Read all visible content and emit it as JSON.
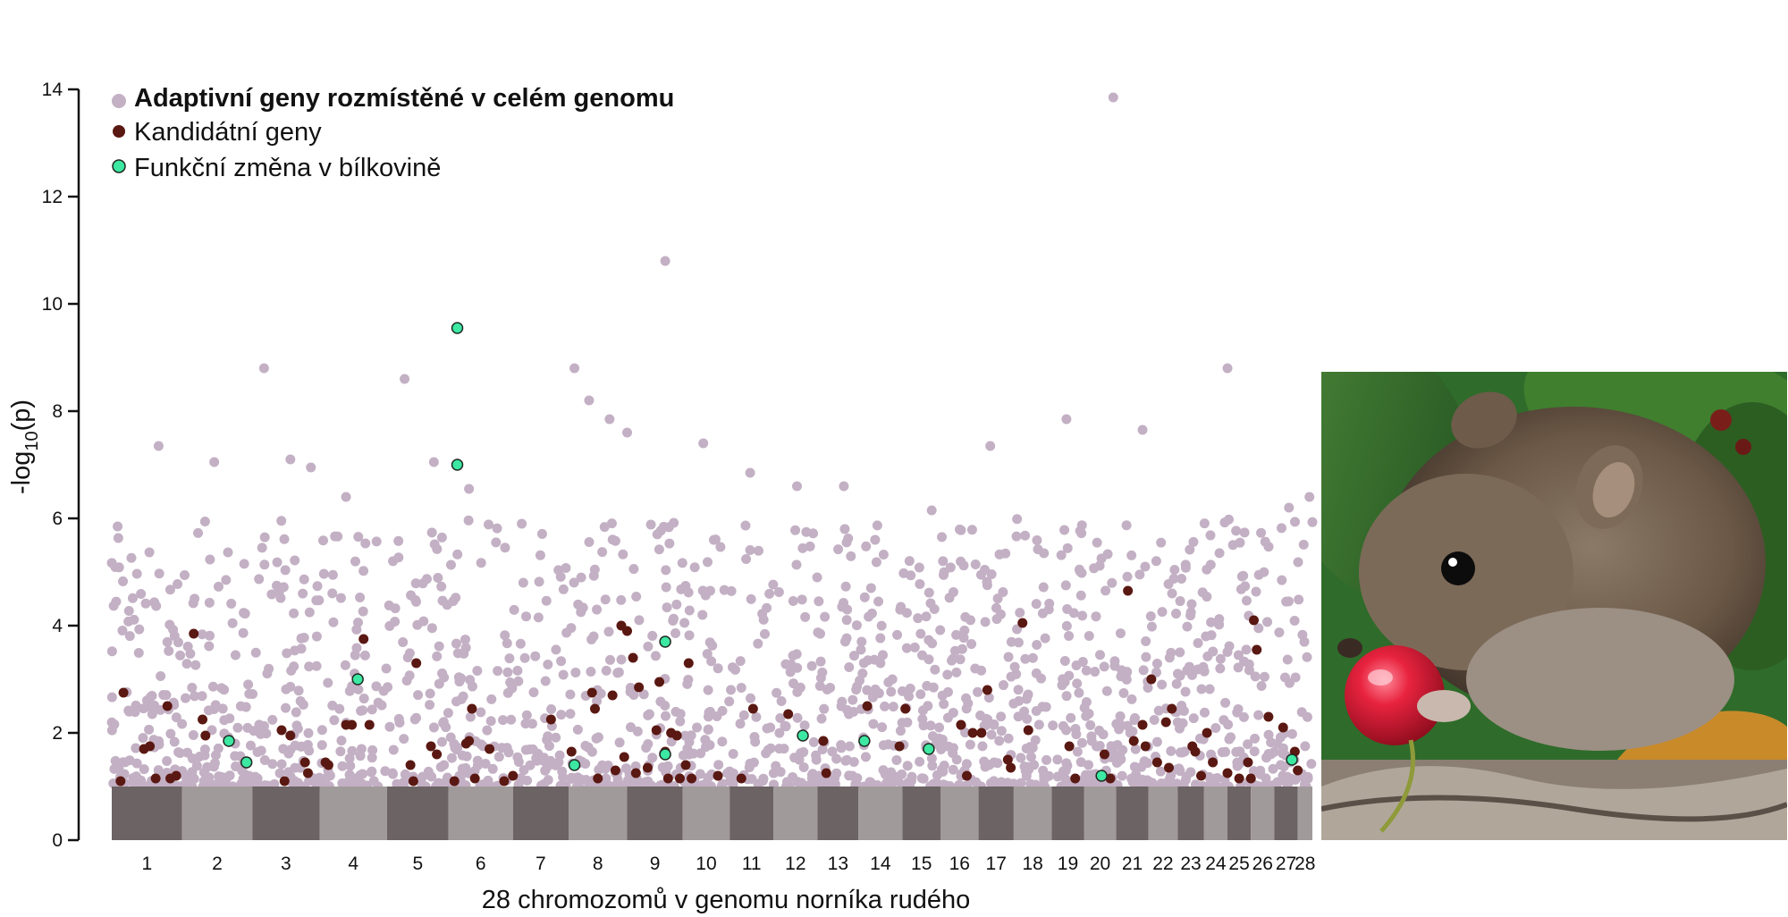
{
  "colors": {
    "background": "#c3b0c4",
    "candidate": "#5a1812",
    "functional": "#3ce8a2",
    "functional_stroke": "#1f2a22",
    "band_dark": "#6c6364",
    "band_light": "#a19a9a",
    "axis": "#111111"
  },
  "chart_data": {
    "type": "scatter",
    "ylabel": "-log10(p)",
    "ylabel_main": "-log",
    "ylabel_sub": "10",
    "ylabel_tail": "(p)",
    "xlabel": "28 chromozomů v genomu norníka rudého",
    "ylim": [
      0,
      14
    ],
    "yticks": [
      0,
      2,
      4,
      6,
      8,
      10,
      12,
      14
    ],
    "chromosomes": [
      {
        "label": "1",
        "span": [
          0.0,
          1.2
        ]
      },
      {
        "label": "2",
        "span": [
          1.2,
          2.4
        ]
      },
      {
        "label": "3",
        "span": [
          2.4,
          3.55
        ]
      },
      {
        "label": "4",
        "span": [
          3.55,
          4.7
        ]
      },
      {
        "label": "5",
        "span": [
          4.7,
          5.75
        ]
      },
      {
        "label": "6",
        "span": [
          5.75,
          6.85
        ]
      },
      {
        "label": "7",
        "span": [
          6.85,
          7.8
        ]
      },
      {
        "label": "8",
        "span": [
          7.8,
          8.8
        ]
      },
      {
        "label": "9",
        "span": [
          8.8,
          9.75
        ]
      },
      {
        "label": "10",
        "span": [
          9.75,
          10.55
        ]
      },
      {
        "label": "11",
        "span": [
          10.55,
          11.3
        ]
      },
      {
        "label": "12",
        "span": [
          11.3,
          12.05
        ]
      },
      {
        "label": "13",
        "span": [
          12.05,
          12.75
        ]
      },
      {
        "label": "14",
        "span": [
          12.75,
          13.5
        ]
      },
      {
        "label": "15",
        "span": [
          13.5,
          14.15
        ]
      },
      {
        "label": "16",
        "span": [
          14.15,
          14.8
        ]
      },
      {
        "label": "17",
        "span": [
          14.8,
          15.4
        ]
      },
      {
        "label": "18",
        "span": [
          15.4,
          16.05
        ]
      },
      {
        "label": "19",
        "span": [
          16.05,
          16.6
        ]
      },
      {
        "label": "20",
        "span": [
          16.6,
          17.15
        ]
      },
      {
        "label": "21",
        "span": [
          17.15,
          17.7
        ]
      },
      {
        "label": "22",
        "span": [
          17.7,
          18.2
        ]
      },
      {
        "label": "23",
        "span": [
          18.2,
          18.65
        ]
      },
      {
        "label": "24",
        "span": [
          18.65,
          19.05
        ]
      },
      {
        "label": "25",
        "span": [
          19.05,
          19.45
        ]
      },
      {
        "label": "26",
        "span": [
          19.45,
          19.85
        ]
      },
      {
        "label": "27",
        "span": [
          19.85,
          20.25
        ]
      },
      {
        "label": "28",
        "span": [
          20.25,
          20.5
        ]
      }
    ],
    "xlim": [
      0,
      20.5
    ],
    "series": [
      {
        "name": "Adaptivní geny rozmístěné v celém genomu",
        "kind": "background",
        "peaks": [
          {
            "x": 0.1,
            "y": 5.85
          },
          {
            "x": 0.8,
            "y": 7.35
          },
          {
            "x": 1.75,
            "y": 7.05
          },
          {
            "x": 2.6,
            "y": 8.8
          },
          {
            "x": 3.05,
            "y": 7.1
          },
          {
            "x": 3.4,
            "y": 6.95
          },
          {
            "x": 4.0,
            "y": 6.4
          },
          {
            "x": 5.0,
            "y": 8.6
          },
          {
            "x": 5.5,
            "y": 7.05
          },
          {
            "x": 6.1,
            "y": 6.55
          },
          {
            "x": 7.0,
            "y": 5.9
          },
          {
            "x": 7.9,
            "y": 8.8
          },
          {
            "x": 8.15,
            "y": 8.2
          },
          {
            "x": 8.5,
            "y": 7.85
          },
          {
            "x": 8.8,
            "y": 7.6
          },
          {
            "x": 9.45,
            "y": 10.8
          },
          {
            "x": 10.1,
            "y": 7.4
          },
          {
            "x": 10.9,
            "y": 6.85
          },
          {
            "x": 11.7,
            "y": 6.6
          },
          {
            "x": 12.5,
            "y": 6.6
          },
          {
            "x": 14.0,
            "y": 6.15
          },
          {
            "x": 15.0,
            "y": 7.35
          },
          {
            "x": 16.3,
            "y": 7.85
          },
          {
            "x": 17.6,
            "y": 7.65
          },
          {
            "x": 17.1,
            "y": 13.85
          },
          {
            "x": 19.05,
            "y": 8.8
          },
          {
            "x": 20.1,
            "y": 6.2
          },
          {
            "x": 20.45,
            "y": 6.4
          }
        ]
      },
      {
        "name": "Kandidátní geny",
        "kind": "candidate",
        "points": [
          {
            "x": 0.15,
            "y": 1.1
          },
          {
            "x": 0.2,
            "y": 2.75
          },
          {
            "x": 0.55,
            "y": 1.7
          },
          {
            "x": 0.65,
            "y": 1.75
          },
          {
            "x": 0.75,
            "y": 1.15
          },
          {
            "x": 0.95,
            "y": 2.5
          },
          {
            "x": 1.0,
            "y": 1.15
          },
          {
            "x": 1.1,
            "y": 1.2
          },
          {
            "x": 1.4,
            "y": 3.85
          },
          {
            "x": 1.55,
            "y": 2.25
          },
          {
            "x": 1.6,
            "y": 1.95
          },
          {
            "x": 2.9,
            "y": 2.05
          },
          {
            "x": 2.95,
            "y": 1.1
          },
          {
            "x": 3.05,
            "y": 1.95
          },
          {
            "x": 3.3,
            "y": 1.45
          },
          {
            "x": 3.35,
            "y": 1.25
          },
          {
            "x": 3.65,
            "y": 1.45
          },
          {
            "x": 3.7,
            "y": 1.4
          },
          {
            "x": 4.0,
            "y": 2.15
          },
          {
            "x": 4.1,
            "y": 2.15
          },
          {
            "x": 4.3,
            "y": 3.75
          },
          {
            "x": 4.4,
            "y": 2.15
          },
          {
            "x": 5.1,
            "y": 1.4
          },
          {
            "x": 5.15,
            "y": 1.1
          },
          {
            "x": 5.2,
            "y": 3.3
          },
          {
            "x": 5.45,
            "y": 1.75
          },
          {
            "x": 5.55,
            "y": 1.6
          },
          {
            "x": 5.85,
            "y": 1.1
          },
          {
            "x": 6.05,
            "y": 1.8
          },
          {
            "x": 6.1,
            "y": 1.85
          },
          {
            "x": 6.15,
            "y": 2.45
          },
          {
            "x": 6.2,
            "y": 1.15
          },
          {
            "x": 6.45,
            "y": 1.7
          },
          {
            "x": 6.7,
            "y": 1.1
          },
          {
            "x": 6.85,
            "y": 1.2
          },
          {
            "x": 7.5,
            "y": 2.25
          },
          {
            "x": 7.85,
            "y": 1.65
          },
          {
            "x": 8.2,
            "y": 2.75
          },
          {
            "x": 8.25,
            "y": 2.45
          },
          {
            "x": 8.3,
            "y": 1.15
          },
          {
            "x": 8.55,
            "y": 2.7
          },
          {
            "x": 8.6,
            "y": 1.3
          },
          {
            "x": 8.7,
            "y": 4.0
          },
          {
            "x": 8.75,
            "y": 1.55
          },
          {
            "x": 8.8,
            "y": 3.9
          },
          {
            "x": 8.9,
            "y": 3.4
          },
          {
            "x": 8.95,
            "y": 1.25
          },
          {
            "x": 9.0,
            "y": 2.85
          },
          {
            "x": 9.15,
            "y": 1.35
          },
          {
            "x": 9.3,
            "y": 2.05
          },
          {
            "x": 9.35,
            "y": 2.95
          },
          {
            "x": 9.45,
            "y": 1.65
          },
          {
            "x": 9.5,
            "y": 1.15
          },
          {
            "x": 9.55,
            "y": 2.0
          },
          {
            "x": 9.65,
            "y": 1.95
          },
          {
            "x": 9.7,
            "y": 1.15
          },
          {
            "x": 9.8,
            "y": 1.4
          },
          {
            "x": 9.85,
            "y": 3.3
          },
          {
            "x": 9.9,
            "y": 1.15
          },
          {
            "x": 10.35,
            "y": 1.2
          },
          {
            "x": 10.75,
            "y": 1.15
          },
          {
            "x": 10.95,
            "y": 2.45
          },
          {
            "x": 11.55,
            "y": 2.35
          },
          {
            "x": 12.15,
            "y": 1.85
          },
          {
            "x": 12.2,
            "y": 1.25
          },
          {
            "x": 12.9,
            "y": 2.5
          },
          {
            "x": 13.45,
            "y": 1.75
          },
          {
            "x": 13.55,
            "y": 2.45
          },
          {
            "x": 14.5,
            "y": 2.15
          },
          {
            "x": 14.6,
            "y": 1.2
          },
          {
            "x": 14.7,
            "y": 2.0
          },
          {
            "x": 14.85,
            "y": 2.0
          },
          {
            "x": 14.95,
            "y": 2.8
          },
          {
            "x": 15.3,
            "y": 1.5
          },
          {
            "x": 15.35,
            "y": 1.35
          },
          {
            "x": 15.55,
            "y": 4.05
          },
          {
            "x": 15.65,
            "y": 2.05
          },
          {
            "x": 16.35,
            "y": 1.75
          },
          {
            "x": 16.45,
            "y": 1.15
          },
          {
            "x": 16.95,
            "y": 1.6
          },
          {
            "x": 17.05,
            "y": 1.15
          },
          {
            "x": 17.35,
            "y": 4.65
          },
          {
            "x": 17.45,
            "y": 1.85
          },
          {
            "x": 17.6,
            "y": 2.15
          },
          {
            "x": 17.65,
            "y": 1.75
          },
          {
            "x": 17.75,
            "y": 3.0
          },
          {
            "x": 17.85,
            "y": 1.45
          },
          {
            "x": 18.0,
            "y": 2.2
          },
          {
            "x": 18.05,
            "y": 1.35
          },
          {
            "x": 18.1,
            "y": 2.45
          },
          {
            "x": 18.45,
            "y": 1.75
          },
          {
            "x": 18.5,
            "y": 1.65
          },
          {
            "x": 18.6,
            "y": 1.2
          },
          {
            "x": 18.7,
            "y": 2.0
          },
          {
            "x": 18.8,
            "y": 1.45
          },
          {
            "x": 19.05,
            "y": 1.25
          },
          {
            "x": 19.25,
            "y": 1.15
          },
          {
            "x": 19.4,
            "y": 1.45
          },
          {
            "x": 19.45,
            "y": 1.15
          },
          {
            "x": 19.5,
            "y": 4.1
          },
          {
            "x": 19.55,
            "y": 3.55
          },
          {
            "x": 19.75,
            "y": 2.3
          },
          {
            "x": 20.0,
            "y": 2.1
          },
          {
            "x": 20.2,
            "y": 1.65
          },
          {
            "x": 20.25,
            "y": 1.3
          }
        ]
      },
      {
        "name": "Funkční změna v bílkovině",
        "kind": "functional",
        "points": [
          {
            "x": 2.0,
            "y": 1.85
          },
          {
            "x": 2.3,
            "y": 1.45
          },
          {
            "x": 4.2,
            "y": 3.0
          },
          {
            "x": 5.9,
            "y": 9.55
          },
          {
            "x": 5.9,
            "y": 7.0
          },
          {
            "x": 7.9,
            "y": 1.4
          },
          {
            "x": 9.45,
            "y": 3.7
          },
          {
            "x": 9.45,
            "y": 1.6
          },
          {
            "x": 11.8,
            "y": 1.95
          },
          {
            "x": 12.85,
            "y": 1.85
          },
          {
            "x": 13.95,
            "y": 1.7
          },
          {
            "x": 16.9,
            "y": 1.2
          },
          {
            "x": 20.15,
            "y": 1.5
          }
        ]
      }
    ],
    "legend_position": "top-left"
  },
  "photo": {
    "subject": "bank-vole-eating-red-berry"
  }
}
